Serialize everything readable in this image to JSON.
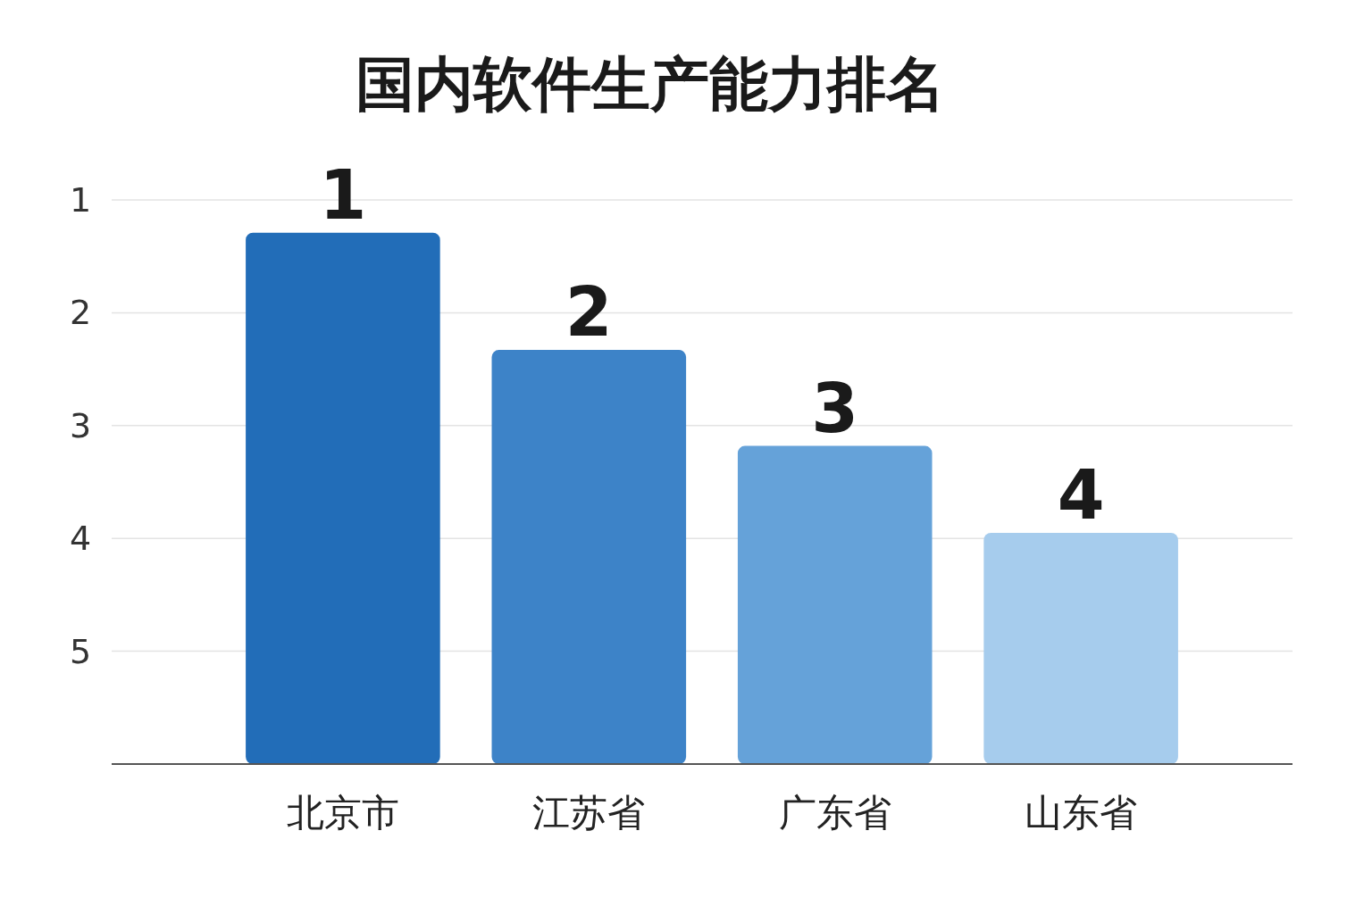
{
  "chart_data": {
    "type": "bar",
    "title": "国内软件生产能力排名",
    "categories": [
      "北京市",
      "江苏省",
      "广东省",
      "山东省"
    ],
    "base": [
      6,
      6,
      6,
      6
    ],
    "values": [
      -4.71,
      -3.67,
      -2.82,
      -2.05
    ],
    "colors": [
      "#226db8",
      "#3d83c8",
      "#65a2d9",
      "#a6cced"
    ],
    "value_labels": [
      "1",
      "2",
      "3",
      "4"
    ],
    "ylim": [
      6,
      1
    ],
    "yticks": [
      1,
      2,
      3,
      4,
      5
    ],
    "grid": "y"
  }
}
